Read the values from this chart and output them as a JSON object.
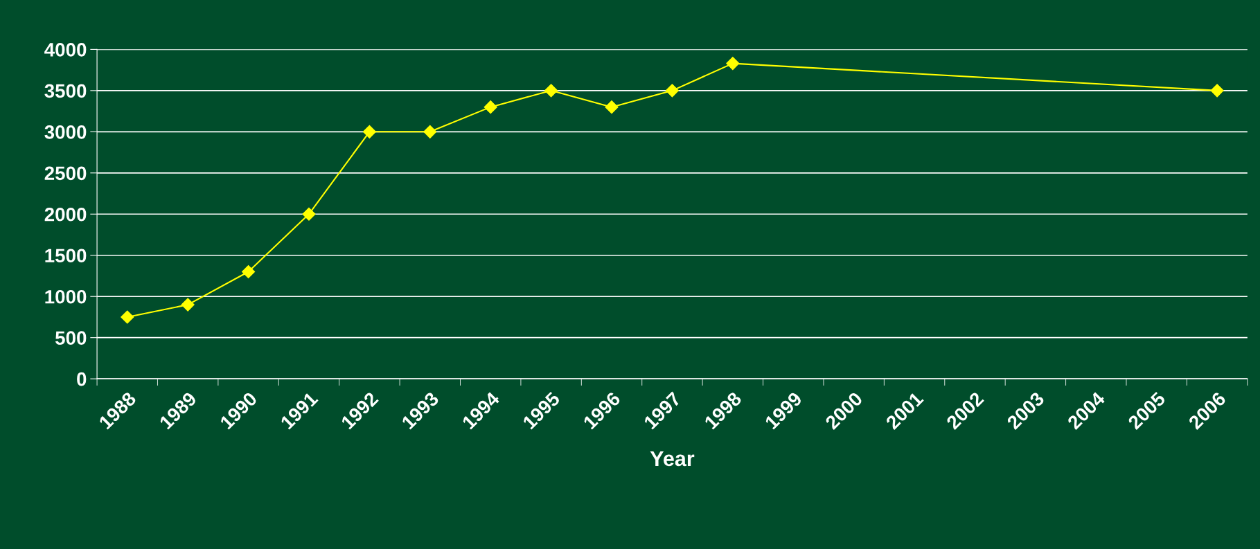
{
  "chart_data": {
    "type": "line",
    "xlabel": "Year",
    "categories": [
      "1988",
      "1989",
      "1990",
      "1991",
      "1992",
      "1993",
      "1994",
      "1995",
      "1996",
      "1997",
      "1998",
      "1999",
      "2000",
      "2001",
      "2002",
      "2003",
      "2004",
      "2005",
      "2006"
    ],
    "series": [
      {
        "color": "#ffff00",
        "values": [
          750,
          900,
          1300,
          2000,
          3000,
          3000,
          3300,
          3500,
          3300,
          3500,
          3830,
          null,
          null,
          null,
          null,
          null,
          null,
          null,
          3500
        ]
      }
    ],
    "ylim": [
      0,
      4000
    ],
    "yticks": [
      0,
      500,
      1000,
      1500,
      2000,
      2500,
      3000,
      3500,
      4000
    ],
    "grid": "y",
    "marker": "diamond",
    "line_style": "solid"
  }
}
